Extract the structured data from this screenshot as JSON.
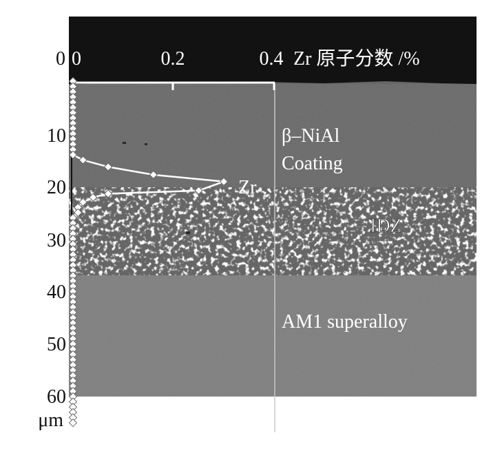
{
  "chart_data": {
    "type": "line",
    "title": "",
    "xlabel": "Zr 原子分数 /%",
    "ylabel": "",
    "y_unit": "μm",
    "xlim": [
      0,
      0.4
    ],
    "ylim": [
      0,
      60
    ],
    "x_ticks": [
      0,
      0.2,
      0.4
    ],
    "x_tick_labels": [
      "0",
      "0.2",
      "0.4"
    ],
    "y_ticks": [
      0,
      10,
      20,
      30,
      40,
      50,
      60
    ],
    "y_tick_labels": [
      "0",
      "10",
      "20",
      "30",
      "40",
      "50",
      "60"
    ],
    "y_origin_label": "0",
    "series": [
      {
        "name": "Zr",
        "color": "#ffffff",
        "marker": "diamond",
        "x": [
          0,
          0,
          0,
          0,
          0,
          0,
          0,
          0,
          0,
          0,
          0,
          0,
          0,
          0,
          0,
          0.02,
          0.07,
          0.16,
          0.3,
          0.25,
          0.07,
          0.04,
          0.02,
          0.01,
          0.01,
          0,
          0,
          0,
          0,
          0,
          0,
          0,
          0,
          0,
          0,
          0,
          0,
          0,
          0,
          0,
          0,
          0,
          0,
          0,
          0,
          0,
          0,
          0,
          0,
          0,
          0,
          0,
          0,
          0,
          0,
          0,
          0,
          0,
          0,
          0,
          0,
          0,
          0,
          0,
          0
        ],
        "y": [
          0,
          1,
          2,
          3,
          4,
          5,
          6,
          7,
          8,
          9,
          10,
          11,
          12,
          13,
          14,
          15,
          16.3,
          17.8,
          19.1,
          20.8,
          21.4,
          22.1,
          23,
          24,
          25,
          26,
          27,
          28,
          29,
          30,
          31,
          32,
          33,
          34,
          35,
          36,
          37,
          38,
          39,
          40,
          41,
          42,
          43,
          44,
          45,
          46,
          47,
          48,
          49,
          50,
          51,
          52,
          53,
          54,
          55,
          56,
          57,
          58,
          59,
          60,
          61,
          62,
          63,
          64,
          65
        ]
      }
    ],
    "annotations": [
      "Zr",
      "β–NiAl",
      "Coating",
      "IDZ",
      "AM1 superalloy"
    ],
    "grid": false,
    "background": "SEM cross-section micrograph"
  },
  "colors": {
    "topcoat_dark": "#121212",
    "coating": "#676767",
    "idz": "#5e5e5e",
    "superalloy": "#7c7c7c",
    "overlay": "#ffffff"
  }
}
